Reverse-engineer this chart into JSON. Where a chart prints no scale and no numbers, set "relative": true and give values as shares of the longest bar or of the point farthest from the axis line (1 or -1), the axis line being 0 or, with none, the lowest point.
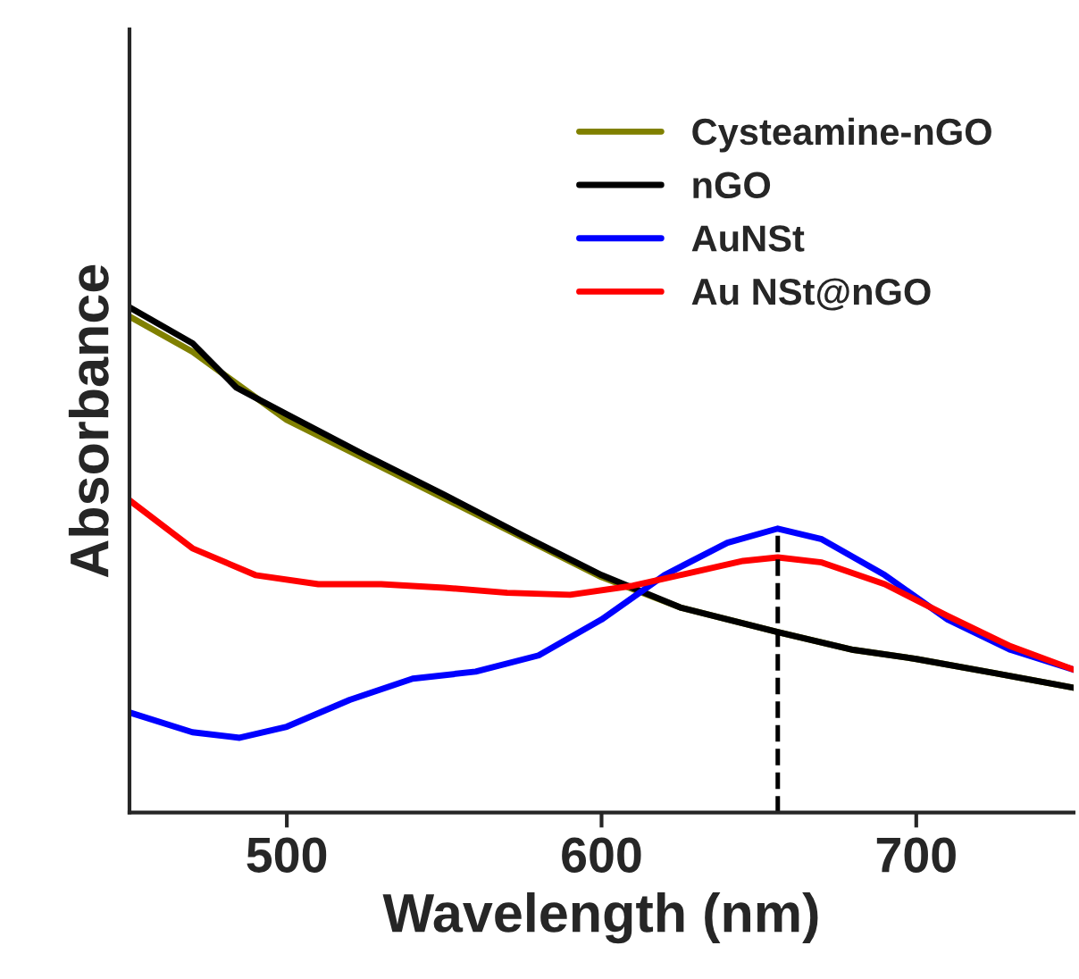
{
  "chart_data": {
    "type": "line",
    "relative": true,
    "xlabel": "Wavelength (nm)",
    "ylabel": "Absorbance",
    "xlim": [
      450,
      750
    ],
    "xticks": [
      500,
      600,
      700
    ],
    "legend": "top right",
    "grid": false,
    "line_style": "solid",
    "marker": "none",
    "series": [
      {
        "name": "Cysteamine-nGO",
        "color": "#808000",
        "x": [
          450,
          470,
          500,
          550,
          600,
          625,
          656,
          680,
          700,
          725,
          750
        ],
        "values": [
          0.982,
          0.912,
          0.777,
          0.622,
          0.466,
          0.406,
          0.357,
          0.322,
          0.304,
          0.276,
          0.247
        ]
      },
      {
        "name": "nGO",
        "color": "#000000",
        "x": [
          450,
          470,
          484,
          500,
          525,
          550,
          575,
          600,
          625,
          656,
          680,
          700,
          725,
          750
        ],
        "values": [
          1.0,
          0.929,
          0.841,
          0.788,
          0.707,
          0.629,
          0.548,
          0.47,
          0.406,
          0.357,
          0.322,
          0.304,
          0.276,
          0.247
        ]
      },
      {
        "name": "AuNSt",
        "color": "#0000ff",
        "x": [
          450,
          470,
          485,
          500,
          520,
          540,
          560,
          580,
          600,
          620,
          640,
          656,
          670,
          690,
          710,
          730,
          750
        ],
        "values": [
          0.198,
          0.159,
          0.148,
          0.17,
          0.223,
          0.265,
          0.279,
          0.311,
          0.382,
          0.47,
          0.534,
          0.562,
          0.541,
          0.47,
          0.382,
          0.322,
          0.283
        ]
      },
      {
        "name": "Au NSt@nGO",
        "color": "#ff0000",
        "x": [
          450,
          470,
          490,
          510,
          530,
          550,
          570,
          590,
          610,
          630,
          645,
          656,
          670,
          690,
          710,
          730,
          750
        ],
        "values": [
          0.618,
          0.523,
          0.47,
          0.452,
          0.452,
          0.445,
          0.435,
          0.431,
          0.449,
          0.477,
          0.498,
          0.505,
          0.495,
          0.452,
          0.389,
          0.329,
          0.283
        ]
      }
    ],
    "ref_lines": [
      {
        "axis": "x",
        "value": 656,
        "color": "#000000",
        "line_style": "dashed"
      }
    ]
  }
}
